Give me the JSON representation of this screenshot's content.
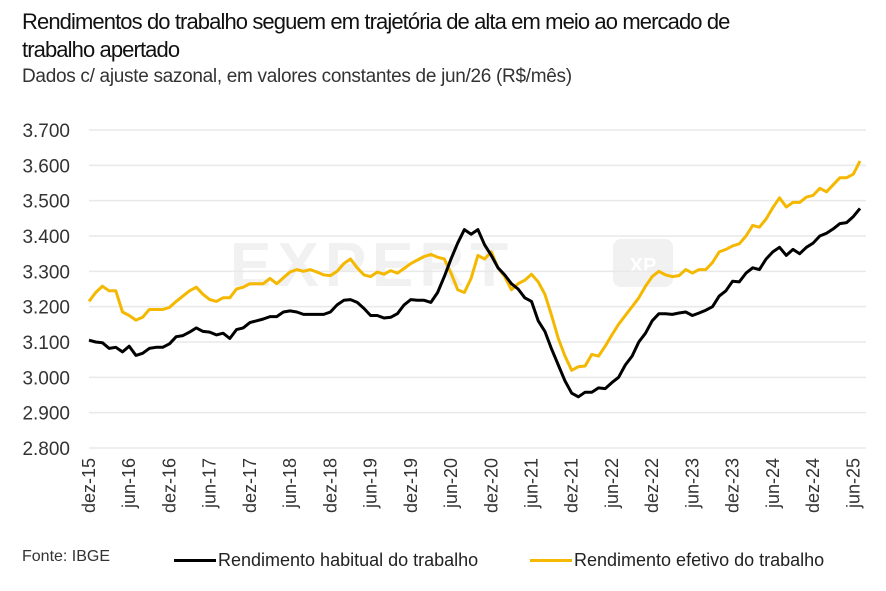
{
  "header": {
    "title": "Rendimentos do trabalho seguem em trajetória de alta em meio ao mercado de trabalho apertado",
    "subtitle": "Dados c/ ajuste sazonal, em valores constantes de jun/26 (R$/mês)"
  },
  "footer": {
    "source": "Fonte: IBGE"
  },
  "watermark": {
    "text": "EXPERT",
    "badge": "XP"
  },
  "colors": {
    "habitual": "#000000",
    "efetivo": "#F5B800",
    "grid": "#e9e9e9",
    "watermark": "#f1f1f1"
  },
  "chart_data": {
    "type": "line",
    "title": "Rendimentos do trabalho seguem em trajetória de alta em meio ao mercado de trabalho apertado",
    "subtitle": "Dados c/ ajuste sazonal, em valores constantes de jun/26 (R$/mês)",
    "xlabel": "",
    "ylabel": "",
    "ylim": [
      2800,
      3700
    ],
    "yticks": [
      2800,
      2900,
      3000,
      3100,
      3200,
      3300,
      3400,
      3500,
      3600,
      3700
    ],
    "ytick_labels": [
      "2.800",
      "2.900",
      "3.000",
      "3.100",
      "3.200",
      "3.300",
      "3.400",
      "3.500",
      "3.600",
      "3.700"
    ],
    "x_start": "dez-15",
    "x_end": "jun-25",
    "x_frequency": "monthly",
    "xtick_labels": [
      "dez-15",
      "jun-16",
      "dez-16",
      "jun-17",
      "dez-17",
      "jun-18",
      "dez-18",
      "jun-19",
      "dez-19",
      "jun-20",
      "dez-20",
      "jun-21",
      "dez-21",
      "jun-22",
      "dez-22",
      "jun-23",
      "dez-23",
      "jun-24",
      "dez-24",
      "jun-25"
    ],
    "grid": true,
    "legend_position": "bottom",
    "series": [
      {
        "name": "Rendimento habitual do trabalho",
        "color": "#000000",
        "values": [
          3105,
          3100,
          3098,
          3082,
          3085,
          3072,
          3088,
          3062,
          3068,
          3082,
          3085,
          3085,
          3095,
          3115,
          3118,
          3128,
          3140,
          3130,
          3128,
          3120,
          3125,
          3110,
          3135,
          3140,
          3155,
          3160,
          3165,
          3172,
          3172,
          3185,
          3188,
          3185,
          3178,
          3178,
          3178,
          3178,
          3185,
          3205,
          3218,
          3220,
          3212,
          3195,
          3175,
          3175,
          3168,
          3170,
          3180,
          3205,
          3220,
          3218,
          3218,
          3212,
          3240,
          3285,
          3335,
          3380,
          3418,
          3405,
          3418,
          3375,
          3345,
          3310,
          3290,
          3265,
          3250,
          3225,
          3215,
          3160,
          3130,
          3080,
          3035,
          2990,
          2955,
          2945,
          2958,
          2958,
          2970,
          2968,
          2985,
          3000,
          3035,
          3060,
          3100,
          3125,
          3160,
          3180,
          3180,
          3178,
          3182,
          3185,
          3175,
          3182,
          3190,
          3200,
          3230,
          3245,
          3272,
          3270,
          3295,
          3310,
          3305,
          3335,
          3355,
          3368,
          3345,
          3362,
          3350,
          3368,
          3380,
          3400,
          3408,
          3420,
          3435,
          3438,
          3455,
          3478
        ]
      },
      {
        "name": "Rendimento efetivo do trabalho",
        "color": "#F5B800",
        "values": [
          3215,
          3240,
          3258,
          3245,
          3245,
          3185,
          3175,
          3162,
          3170,
          3192,
          3192,
          3192,
          3198,
          3215,
          3230,
          3245,
          3255,
          3235,
          3220,
          3215,
          3225,
          3225,
          3250,
          3255,
          3265,
          3265,
          3265,
          3280,
          3265,
          3282,
          3298,
          3305,
          3300,
          3305,
          3298,
          3290,
          3288,
          3300,
          3322,
          3335,
          3310,
          3290,
          3285,
          3298,
          3292,
          3302,
          3295,
          3308,
          3322,
          3332,
          3342,
          3348,
          3340,
          3335,
          3295,
          3248,
          3240,
          3280,
          3345,
          3335,
          3355,
          3310,
          3285,
          3248,
          3265,
          3275,
          3292,
          3270,
          3235,
          3175,
          3110,
          3060,
          3020,
          3030,
          3032,
          3065,
          3060,
          3088,
          3120,
          3150,
          3175,
          3200,
          3225,
          3258,
          3285,
          3300,
          3290,
          3285,
          3288,
          3305,
          3295,
          3305,
          3305,
          3325,
          3355,
          3362,
          3372,
          3378,
          3400,
          3430,
          3425,
          3448,
          3480,
          3508,
          3482,
          3495,
          3495,
          3510,
          3515,
          3535,
          3525,
          3545,
          3565,
          3565,
          3575,
          3612
        ]
      }
    ]
  }
}
